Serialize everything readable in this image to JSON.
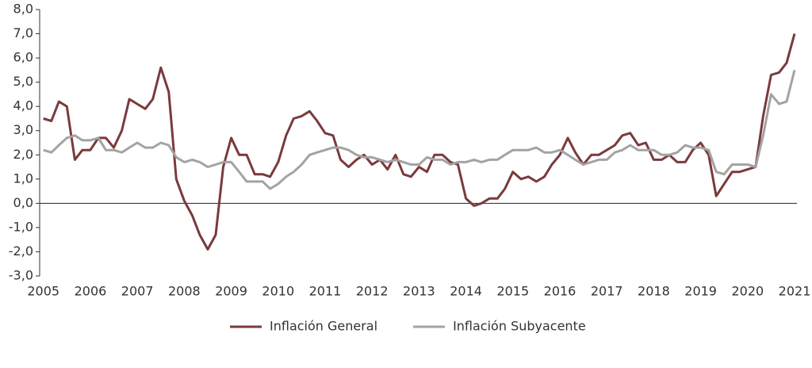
{
  "chart_data": {
    "type": "line",
    "x": [
      2005,
      2005.17,
      2005.33,
      2005.5,
      2005.67,
      2005.83,
      2006,
      2006.17,
      2006.33,
      2006.5,
      2006.67,
      2006.83,
      2007,
      2007.17,
      2007.33,
      2007.5,
      2007.67,
      2007.83,
      2008,
      2008.17,
      2008.33,
      2008.5,
      2008.67,
      2008.83,
      2009,
      2009.17,
      2009.33,
      2009.5,
      2009.67,
      2009.83,
      2010,
      2010.17,
      2010.33,
      2010.5,
      2010.67,
      2010.83,
      2011,
      2011.17,
      2011.33,
      2011.5,
      2011.67,
      2011.83,
      2012,
      2012.17,
      2012.33,
      2012.5,
      2012.67,
      2012.83,
      2013,
      2013.17,
      2013.33,
      2013.5,
      2013.67,
      2013.83,
      2014,
      2014.17,
      2014.33,
      2014.5,
      2014.67,
      2014.83,
      2015,
      2015.17,
      2015.33,
      2015.5,
      2015.67,
      2015.83,
      2016,
      2016.17,
      2016.33,
      2016.5,
      2016.67,
      2016.83,
      2017,
      2017.17,
      2017.33,
      2017.5,
      2017.67,
      2017.83,
      2018,
      2018.17,
      2018.33,
      2018.5,
      2018.67,
      2018.83,
      2019,
      2019.17,
      2019.33,
      2019.5,
      2019.67,
      2019.83,
      2020,
      2020.17,
      2020.33,
      2020.5,
      2020.67,
      2020.83,
      2021
    ],
    "series": [
      {
        "name": "Inflación General",
        "color": "#7a3a3c",
        "values": [
          3.5,
          3.4,
          4.2,
          4.0,
          1.8,
          2.2,
          2.2,
          2.7,
          2.7,
          2.3,
          3.0,
          4.3,
          4.1,
          3.9,
          4.3,
          5.6,
          4.6,
          1.0,
          0.1,
          -0.5,
          -1.3,
          -1.9,
          -1.3,
          1.5,
          2.7,
          2.0,
          2.0,
          1.2,
          1.2,
          1.1,
          1.7,
          2.8,
          3.5,
          3.6,
          3.8,
          3.4,
          2.9,
          2.8,
          1.8,
          1.5,
          1.8,
          2.0,
          1.6,
          1.8,
          1.4,
          2.0,
          1.2,
          1.1,
          1.5,
          1.3,
          2.0,
          2.0,
          1.7,
          1.6,
          0.2,
          -0.1,
          0.0,
          0.2,
          0.2,
          0.6,
          1.3,
          1.0,
          1.1,
          0.9,
          1.1,
          1.6,
          2.0,
          2.7,
          2.1,
          1.6,
          2.0,
          2.0,
          2.2,
          2.4,
          2.8,
          2.9,
          2.4,
          2.5,
          1.8,
          1.8,
          2.0,
          1.7,
          1.7,
          2.2,
          2.5,
          2.0,
          0.3,
          0.8,
          1.3,
          1.3,
          1.4,
          1.5,
          3.6,
          5.3,
          5.4,
          5.8,
          7.0
        ]
      },
      {
        "name": "Inflación Subyacente",
        "color": "#a3a3a3",
        "values": [
          2.2,
          2.1,
          2.4,
          2.7,
          2.8,
          2.6,
          2.6,
          2.7,
          2.2,
          2.2,
          2.1,
          2.3,
          2.5,
          2.3,
          2.3,
          2.5,
          2.4,
          1.9,
          1.7,
          1.8,
          1.7,
          1.5,
          1.6,
          1.7,
          1.7,
          1.3,
          0.9,
          0.9,
          0.9,
          0.6,
          0.8,
          1.1,
          1.3,
          1.6,
          2.0,
          2.1,
          2.2,
          2.3,
          2.3,
          2.2,
          2.0,
          1.9,
          1.9,
          1.8,
          1.7,
          1.8,
          1.7,
          1.6,
          1.6,
          1.9,
          1.8,
          1.8,
          1.6,
          1.7,
          1.7,
          1.8,
          1.7,
          1.8,
          1.8,
          2.0,
          2.2,
          2.2,
          2.2,
          2.3,
          2.1,
          2.1,
          2.2,
          2.0,
          1.8,
          1.6,
          1.7,
          1.8,
          1.8,
          2.1,
          2.2,
          2.4,
          2.2,
          2.2,
          2.2,
          2.0,
          2.0,
          2.1,
          2.4,
          2.3,
          2.3,
          2.2,
          1.3,
          1.2,
          1.6,
          1.6,
          1.6,
          1.5,
          2.8,
          4.5,
          4.1,
          4.2,
          5.5
        ]
      }
    ],
    "xlim": [
      2004.92,
      2021.05
    ],
    "xticks": [
      2005,
      2006,
      2007,
      2008,
      2009,
      2010,
      2011,
      2012,
      2013,
      2014,
      2015,
      2016,
      2017,
      2018,
      2019,
      2020,
      2021
    ],
    "ylim": [
      -3,
      8
    ],
    "yticks": [
      {
        "value": -3,
        "label": "-3,0"
      },
      {
        "value": -2,
        "label": "-2,0"
      },
      {
        "value": -1,
        "label": "-1,0"
      },
      {
        "value": 0,
        "label": "0,0"
      },
      {
        "value": 1,
        "label": "1,0"
      },
      {
        "value": 2,
        "label": "2,0"
      },
      {
        "value": 3,
        "label": "3,0"
      },
      {
        "value": 4,
        "label": "4,0"
      },
      {
        "value": 5,
        "label": "5,0"
      },
      {
        "value": 6,
        "label": "6,0"
      },
      {
        "value": 7,
        "label": "7,0"
      },
      {
        "value": 8,
        "label": "8,0"
      }
    ],
    "grid": false,
    "legend": "bottom"
  }
}
